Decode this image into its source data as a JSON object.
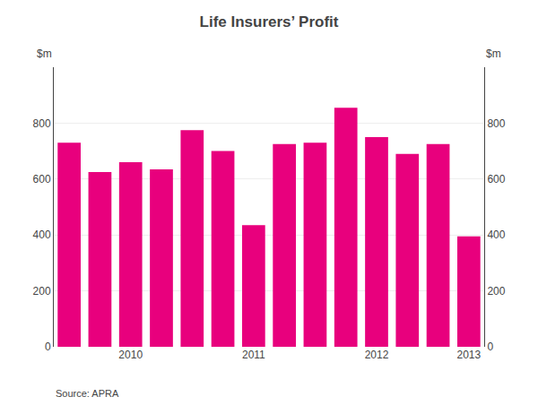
{
  "chart_data": {
    "type": "bar",
    "title": "Life Insurers’ Profit",
    "categories": [
      null,
      null,
      "2010",
      null,
      null,
      null,
      "2011",
      null,
      null,
      null,
      "2012",
      null,
      null,
      "2013"
    ],
    "values": [
      730,
      625,
      660,
      635,
      775,
      700,
      435,
      725,
      730,
      855,
      750,
      690,
      725,
      395
    ],
    "color": "#E8007D",
    "ylabel": "$m",
    "y2label": "$m",
    "ylim": [
      0,
      1000
    ],
    "yticks": [
      0,
      200,
      400,
      600,
      800
    ],
    "y2lim": [
      0,
      1000
    ],
    "y2ticks": [
      0,
      200,
      400,
      600,
      800
    ],
    "grid": true,
    "source": "Source: APRA"
  }
}
